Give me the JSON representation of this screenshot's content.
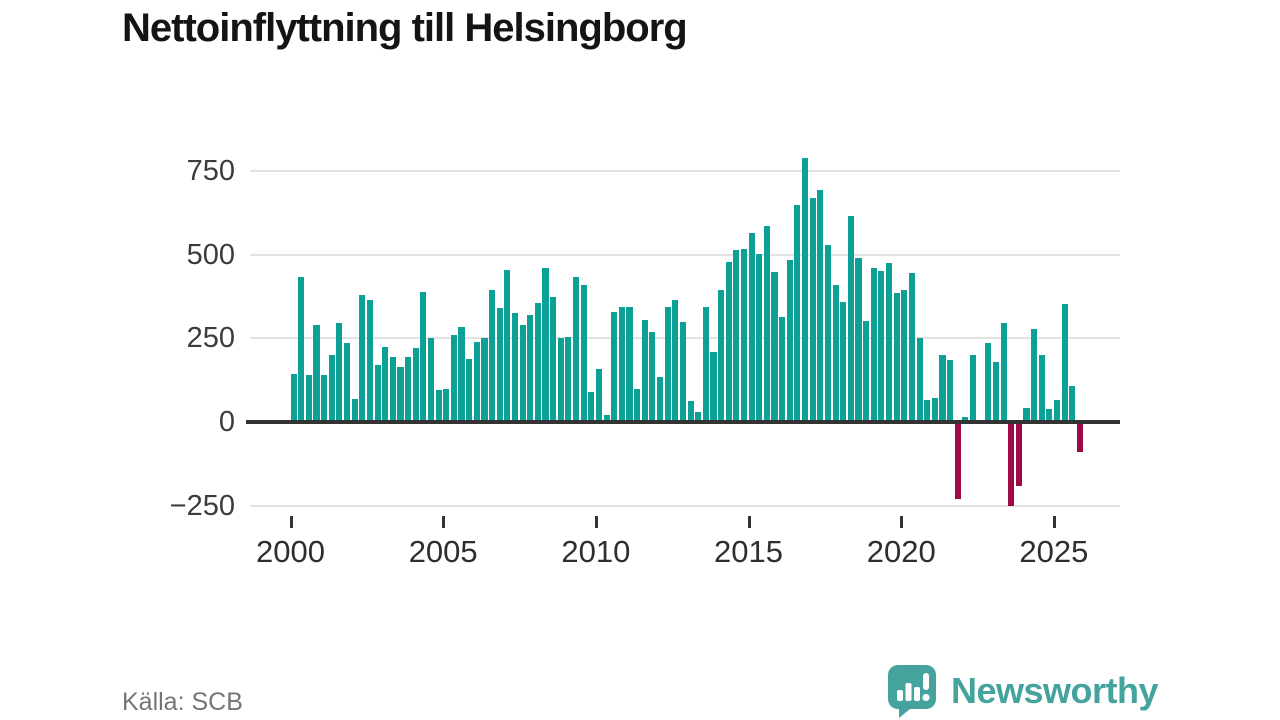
{
  "title": "Nettoinflyttning till Helsingborg",
  "source": "Källa: SCB",
  "branding": {
    "wordmark": "Newsworthy"
  },
  "colors": {
    "positive_bar": "#0da097",
    "negative_bar": "#9e0a45",
    "grid": "#e3e3e3",
    "zero_line": "#333333",
    "axis_text": "#3c3c3c",
    "title_text": "#141414",
    "source_text": "#757575",
    "logo": "#45a39d"
  },
  "chart_data": {
    "type": "bar",
    "title": "Nettoinflyttning till Helsingborg",
    "frequency": "quarterly",
    "categories": [
      "2000 Q1",
      "2000 Q2",
      "2000 Q3",
      "2000 Q4",
      "2001 Q1",
      "2001 Q2",
      "2001 Q3",
      "2001 Q4",
      "2002 Q1",
      "2002 Q2",
      "2002 Q3",
      "2002 Q4",
      "2003 Q1",
      "2003 Q2",
      "2003 Q3",
      "2003 Q4",
      "2004 Q1",
      "2004 Q2",
      "2004 Q3",
      "2004 Q4",
      "2005 Q1",
      "2005 Q2",
      "2005 Q3",
      "2005 Q4",
      "2006 Q1",
      "2006 Q2",
      "2006 Q3",
      "2006 Q4",
      "2007 Q1",
      "2007 Q2",
      "2007 Q3",
      "2007 Q4",
      "2008 Q1",
      "2008 Q2",
      "2008 Q3",
      "2008 Q4",
      "2009 Q1",
      "2009 Q2",
      "2009 Q3",
      "2009 Q4",
      "2010 Q1",
      "2010 Q2",
      "2010 Q3",
      "2010 Q4",
      "2011 Q1",
      "2011 Q2",
      "2011 Q3",
      "2011 Q4",
      "2012 Q1",
      "2012 Q2",
      "2012 Q3",
      "2012 Q4",
      "2013 Q1",
      "2013 Q2",
      "2013 Q3",
      "2013 Q4",
      "2014 Q1",
      "2014 Q2",
      "2014 Q3",
      "2014 Q4",
      "2015 Q1",
      "2015 Q2",
      "2015 Q3",
      "2015 Q4",
      "2016 Q1",
      "2016 Q2",
      "2016 Q3",
      "2016 Q4",
      "2017 Q1",
      "2017 Q2",
      "2017 Q3",
      "2017 Q4",
      "2018 Q1",
      "2018 Q2",
      "2018 Q3",
      "2018 Q4",
      "2019 Q1",
      "2019 Q2",
      "2019 Q3",
      "2019 Q4",
      "2020 Q1",
      "2020 Q2",
      "2020 Q3",
      "2020 Q4",
      "2021 Q1",
      "2021 Q2",
      "2021 Q3",
      "2021 Q4",
      "2022 Q1",
      "2022 Q2",
      "2022 Q3",
      "2022 Q4",
      "2023 Q1",
      "2023 Q2",
      "2023 Q3",
      "2023 Q4",
      "2024 Q1",
      "2024 Q2",
      "2024 Q3",
      "2024 Q4",
      "2025 Q1",
      "2025 Q2",
      "2025 Q3",
      "2025 Q4"
    ],
    "values": [
      145,
      435,
      140,
      290,
      140,
      200,
      295,
      235,
      70,
      380,
      365,
      170,
      225,
      195,
      165,
      195,
      220,
      390,
      250,
      95,
      100,
      260,
      285,
      190,
      240,
      250,
      395,
      340,
      455,
      325,
      290,
      320,
      355,
      460,
      375,
      250,
      255,
      435,
      410,
      90,
      160,
      20,
      330,
      345,
      345,
      100,
      305,
      270,
      135,
      345,
      365,
      300,
      63,
      30,
      345,
      210,
      395,
      480,
      515,
      518,
      565,
      503,
      585,
      448,
      315,
      485,
      650,
      790,
      670,
      695,
      530,
      410,
      360,
      615,
      490,
      302,
      462,
      452,
      475,
      387,
      395,
      445,
      252,
      67,
      72,
      202,
      185,
      -230,
      15,
      200,
      5,
      237,
      180,
      295,
      -250,
      -190,
      42,
      277,
      200,
      40,
      65,
      352,
      108,
      -90
    ],
    "y_ticks": [
      750,
      500,
      250,
      0,
      -250
    ],
    "y_tick_labels": [
      "750",
      "500",
      "250",
      "0",
      "−250"
    ],
    "x_ticks": [
      2000,
      2005,
      2010,
      2015,
      2020,
      2025
    ],
    "ylim": [
      -300,
      820
    ],
    "grid": true,
    "legend": false,
    "xlabel": "",
    "ylabel": ""
  }
}
